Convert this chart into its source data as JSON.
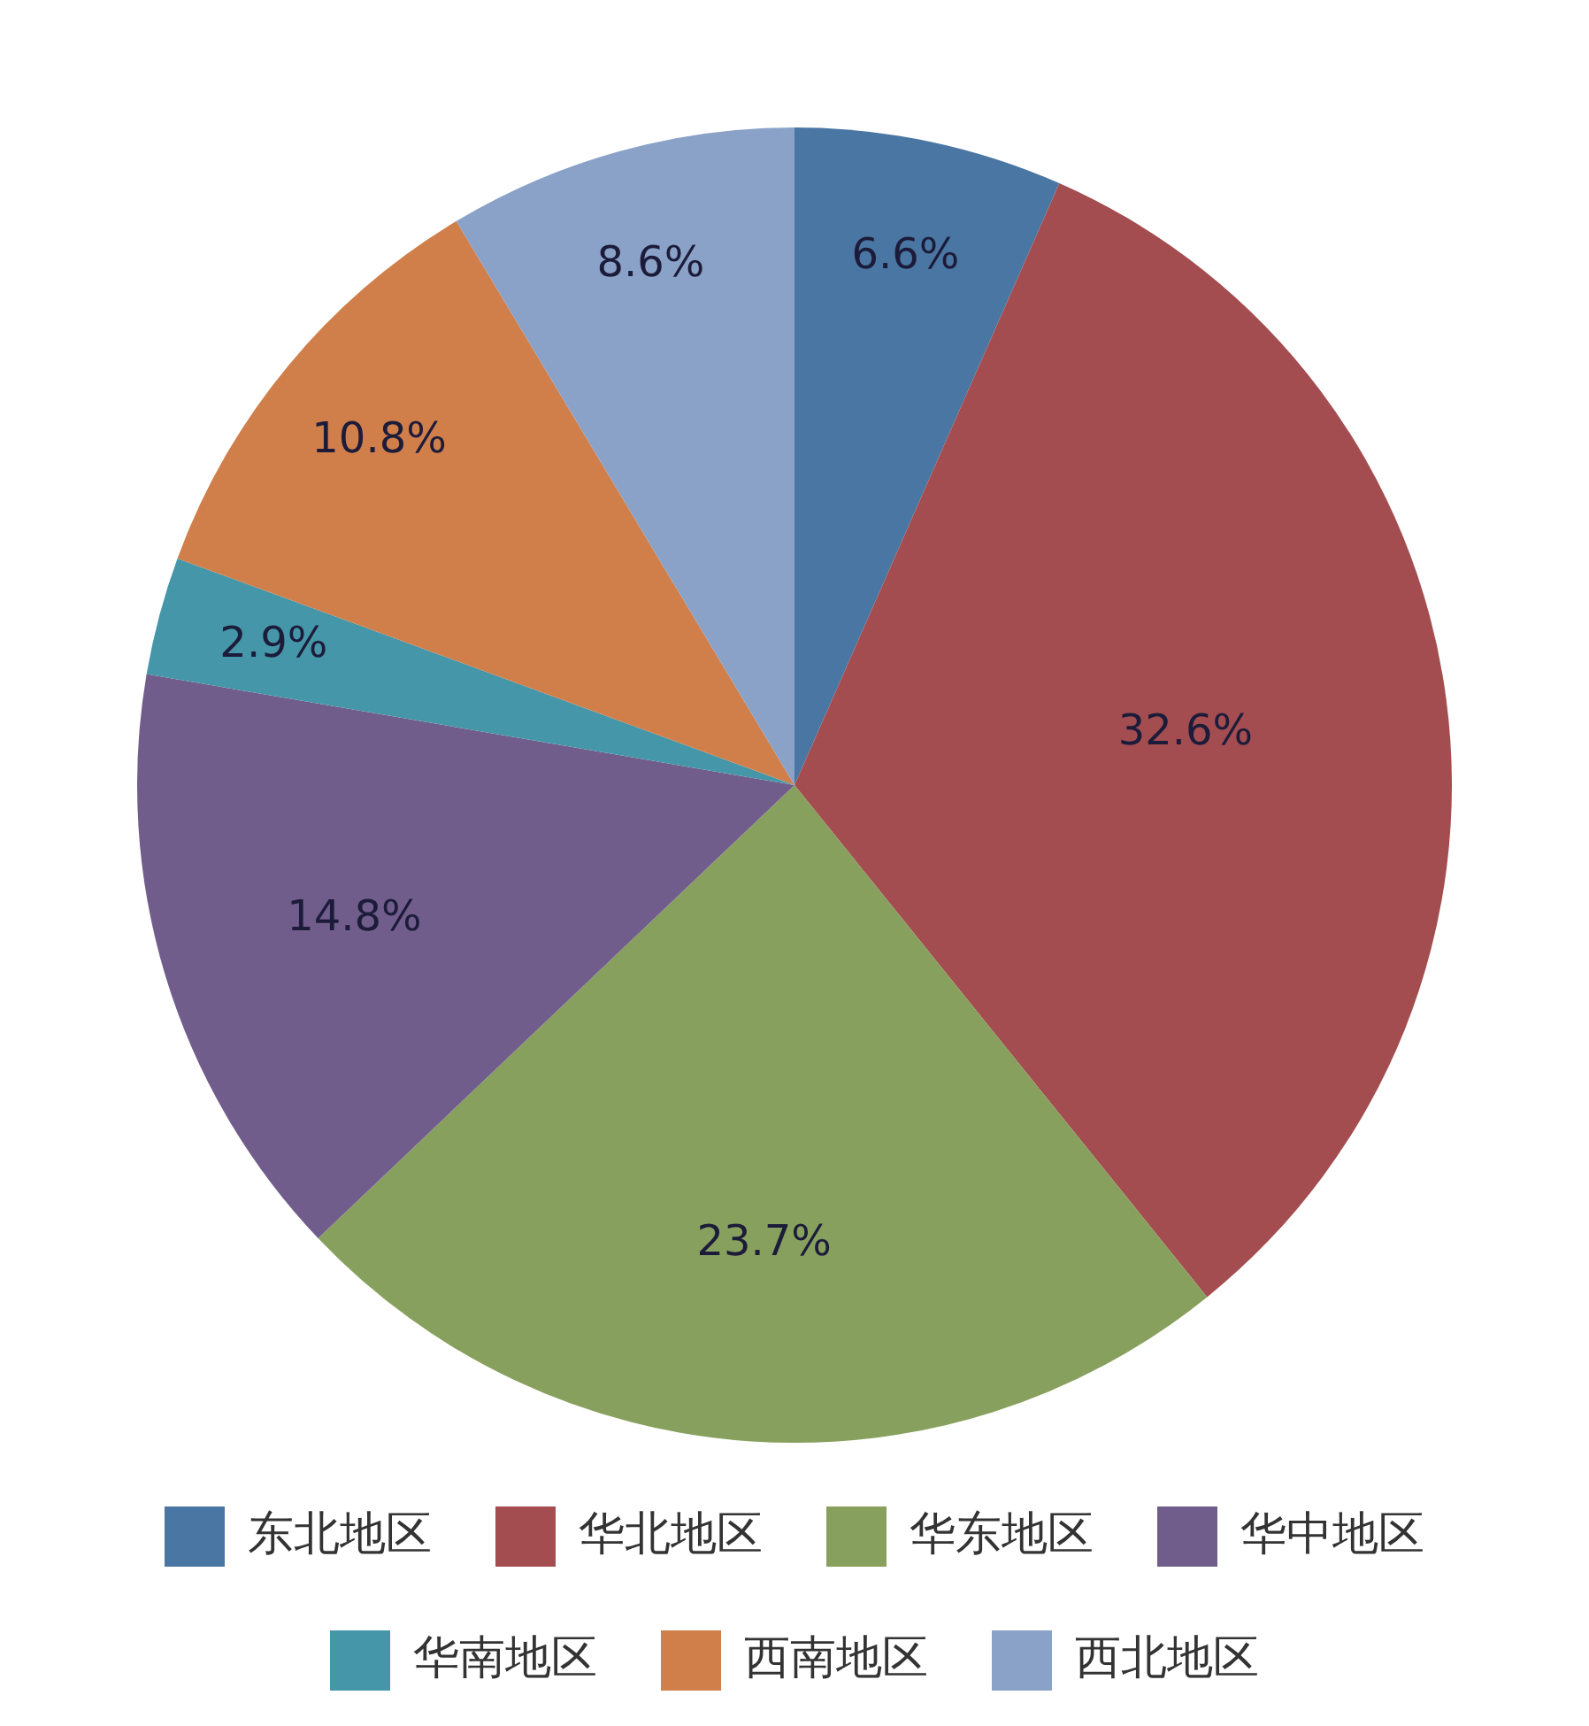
{
  "chart_data": {
    "type": "pie",
    "categories": [
      "东北地区",
      "华北地区",
      "华东地区",
      "华中地区",
      "华南地区",
      "西南地区",
      "西北地区"
    ],
    "values": [
      6.6,
      32.6,
      23.7,
      14.8,
      2.9,
      10.8,
      8.6
    ],
    "colors": [
      "#4a76a3",
      "#a34d50",
      "#88a05e",
      "#715d8c",
      "#4596a8",
      "#d07f4b",
      "#8aa2c8"
    ],
    "value_labels": [
      "6.6%",
      "32.6%",
      "23.7%",
      "14.8%",
      "2.9%",
      "10.8%",
      "8.6%"
    ],
    "legend": "bottom"
  }
}
